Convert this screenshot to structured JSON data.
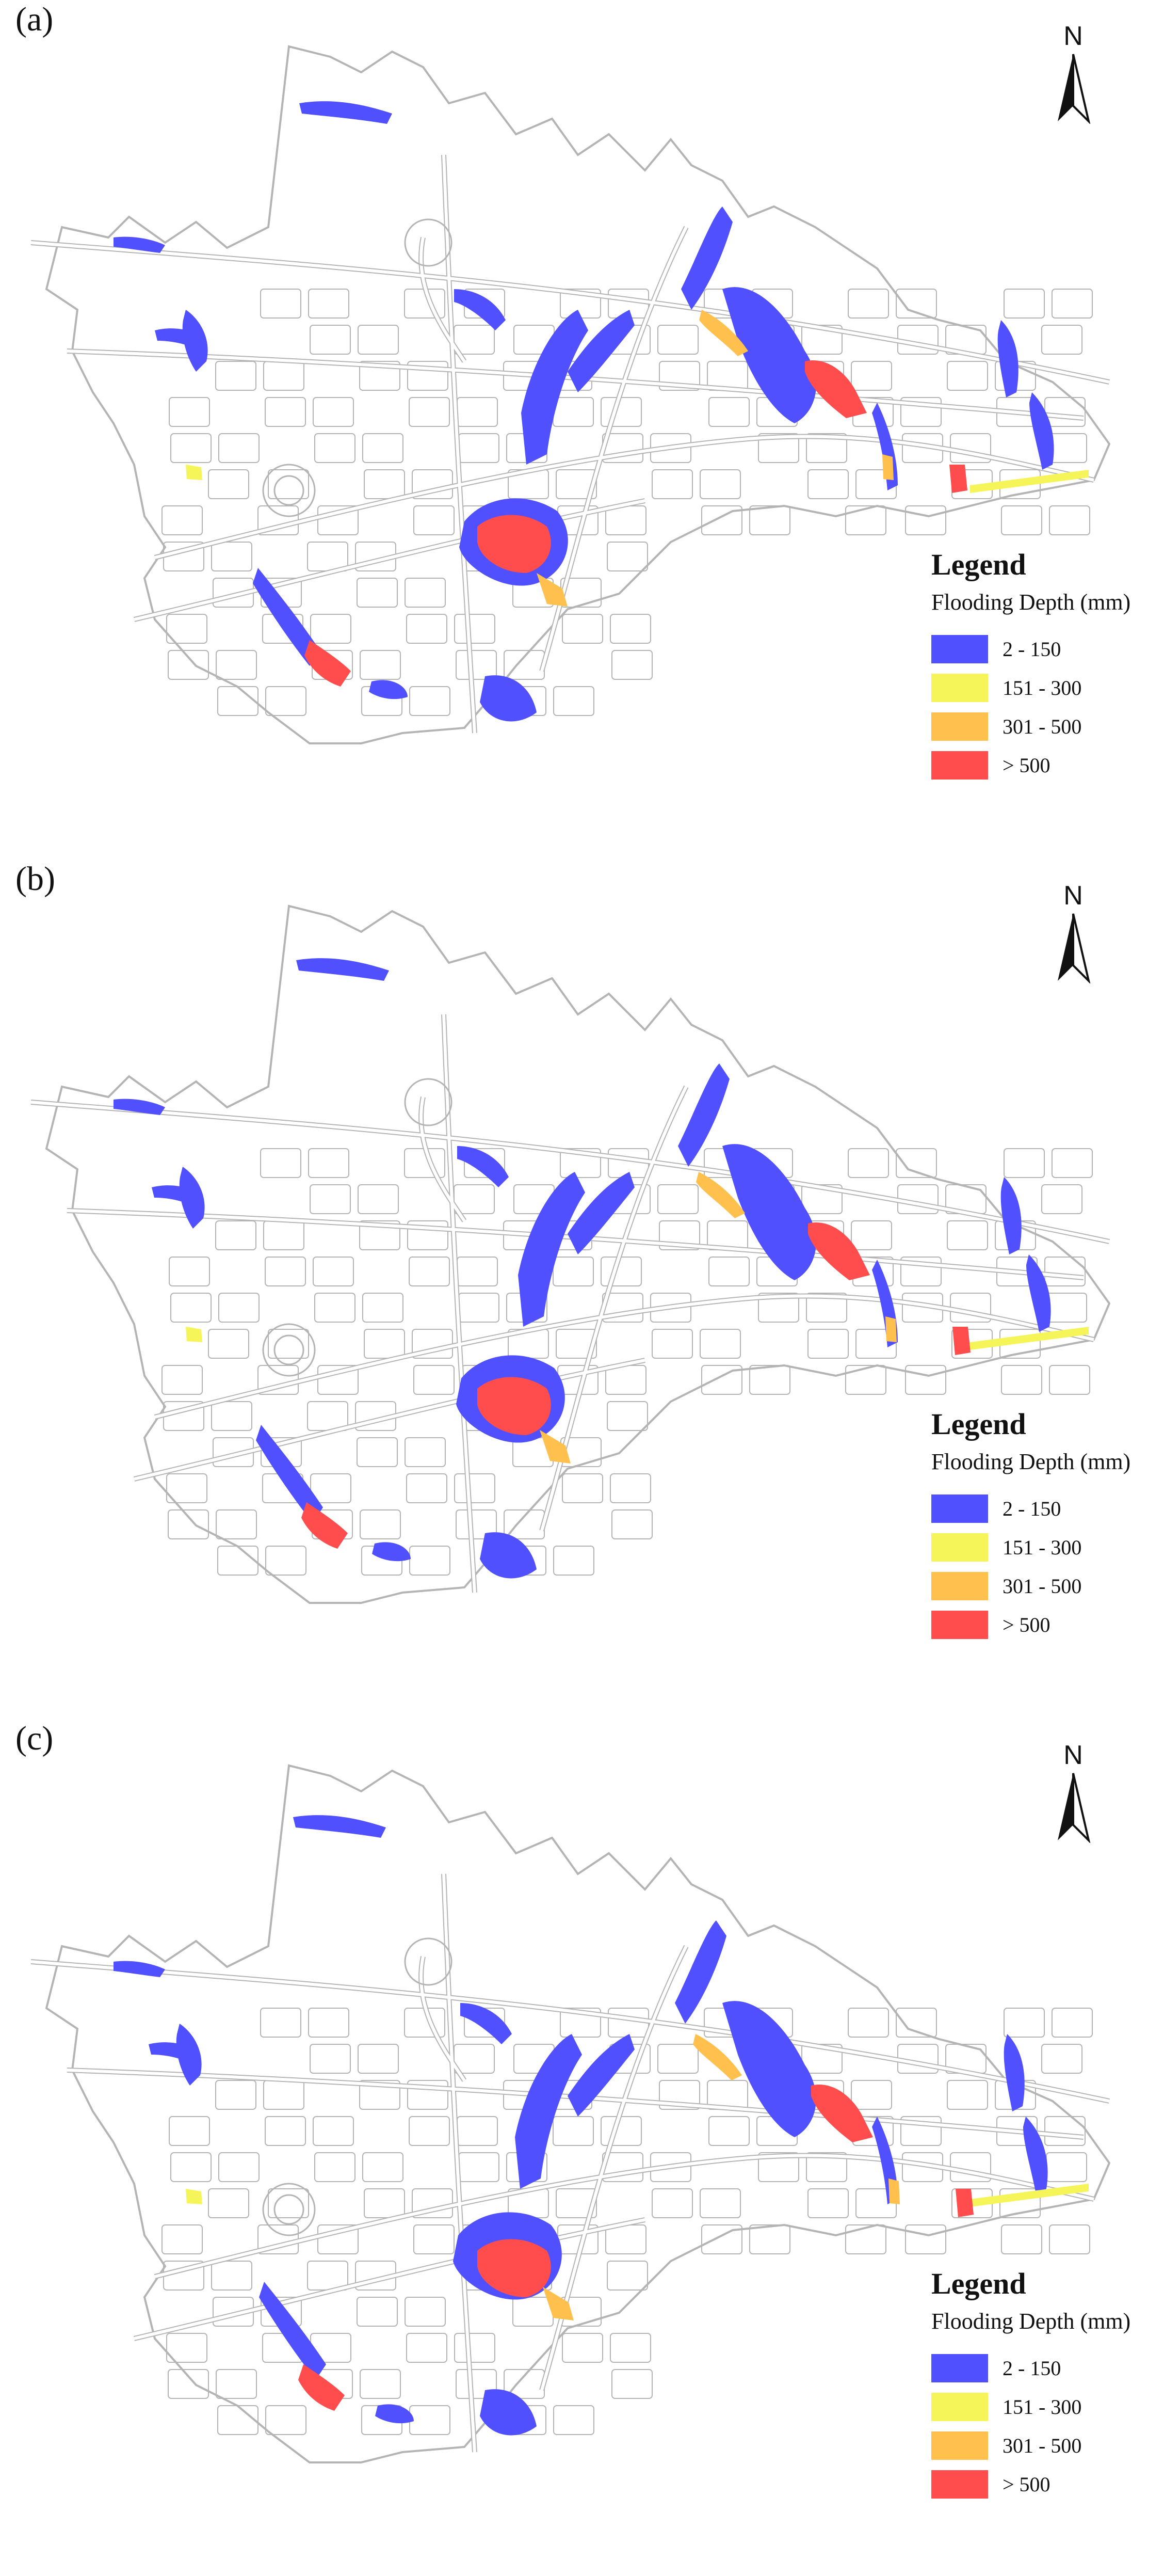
{
  "panels": [
    {
      "label": "(a)"
    },
    {
      "label": "(b)"
    },
    {
      "label": "(c)"
    }
  ],
  "north_arrow": {
    "letter": "N"
  },
  "legend": {
    "title": "Legend",
    "subtitle": "Flooding Depth (mm)",
    "items": [
      {
        "label": "2 - 150",
        "color": "#5050ff"
      },
      {
        "label": "151 - 300",
        "color": "#f5f55a"
      },
      {
        "label": "301 - 500",
        "color": "#ffc04d"
      },
      {
        "label": "> 500",
        "color": "#ff4d4d"
      }
    ]
  },
  "colors": {
    "road_fill": "#ffffff",
    "road_stroke": "#b4b4b4",
    "low": "#5050ff",
    "mid_low": "#f5f55a",
    "mid_high": "#ffc04d",
    "high": "#ff4d4d"
  }
}
